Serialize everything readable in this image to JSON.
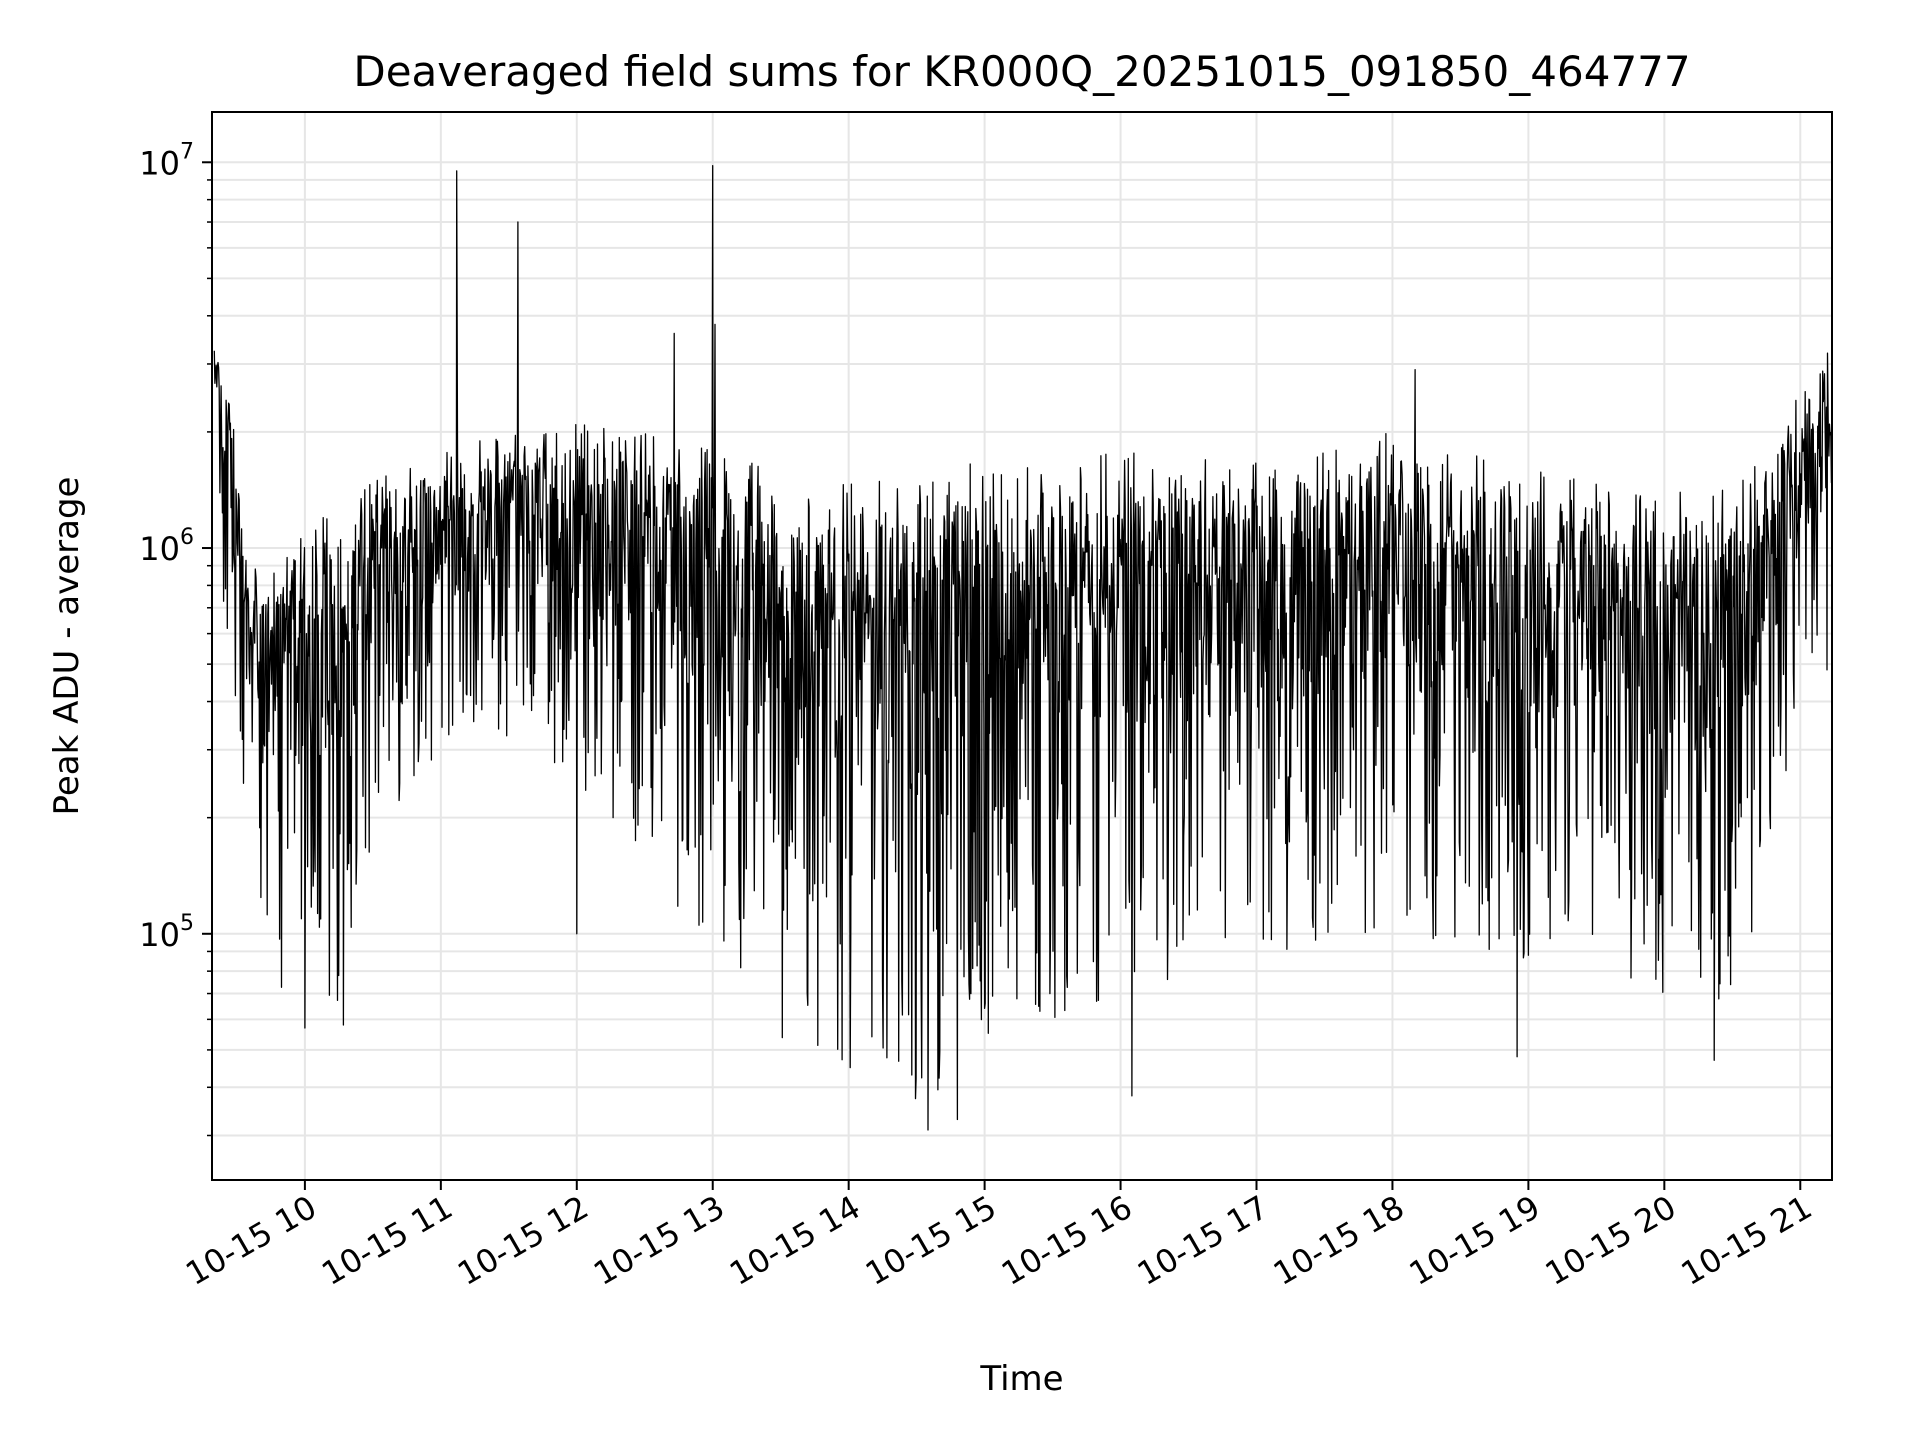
{
  "chart_data": {
    "type": "line",
    "title": "Deaveraged field sums for KR000Q_20251015_091850_464777",
    "xlabel": "Time",
    "ylabel": "Peak ADU - average",
    "yscale": "log",
    "ylim": [
      23000,
      13500000
    ],
    "xlim": [
      "2025-10-15 09:19",
      "2025-10-15 21:14"
    ],
    "x_ticks": [
      {
        "t": "2025-10-15 10:00",
        "label": "10-15 10"
      },
      {
        "t": "2025-10-15 11:00",
        "label": "10-15 11"
      },
      {
        "t": "2025-10-15 12:00",
        "label": "10-15 12"
      },
      {
        "t": "2025-10-15 13:00",
        "label": "10-15 13"
      },
      {
        "t": "2025-10-15 14:00",
        "label": "10-15 14"
      },
      {
        "t": "2025-10-15 15:00",
        "label": "10-15 15"
      },
      {
        "t": "2025-10-15 16:00",
        "label": "10-15 16"
      },
      {
        "t": "2025-10-15 17:00",
        "label": "10-15 17"
      },
      {
        "t": "2025-10-15 18:00",
        "label": "10-15 18"
      },
      {
        "t": "2025-10-15 19:00",
        "label": "10-15 19"
      },
      {
        "t": "2025-10-15 20:00",
        "label": "10-15 20"
      },
      {
        "t": "2025-10-15 21:00",
        "label": "10-15 21"
      }
    ],
    "y_ticks": [
      {
        "value": 100000,
        "base": "10",
        "exp": "5"
      },
      {
        "value": 1000000,
        "base": "10",
        "exp": "6"
      },
      {
        "value": 10000000,
        "base": "10",
        "exp": "7"
      }
    ],
    "grid": true,
    "line_color": "#000000",
    "grid_color": "#e6e6e6",
    "series": [
      {
        "envelope": [
          {
            "x": "2025-10-15 09:20",
            "low": 1300000,
            "high": 3500000
          },
          {
            "x": "2025-10-15 09:27",
            "low": 400000,
            "high": 2400000
          },
          {
            "x": "2025-10-15 09:35",
            "low": 110000,
            "high": 1000000
          },
          {
            "x": "2025-10-15 09:45",
            "low": 75000,
            "high": 850000
          },
          {
            "x": "2025-10-15 10:00",
            "low": 60000,
            "high": 1200000
          },
          {
            "x": "2025-10-15 10:15",
            "low": 60000,
            "high": 1300000
          },
          {
            "x": "2025-10-15 10:30",
            "low": 180000,
            "high": 1500000
          },
          {
            "x": "2025-10-15 11:00",
            "low": 300000,
            "high": 1800000
          },
          {
            "x": "2025-10-15 11:30",
            "low": 300000,
            "high": 2000000
          },
          {
            "x": "2025-10-15 12:00",
            "low": 250000,
            "high": 2100000
          },
          {
            "x": "2025-10-15 12:30",
            "low": 150000,
            "high": 2000000
          },
          {
            "x": "2025-10-15 13:00",
            "low": 90000,
            "high": 1800000
          },
          {
            "x": "2025-10-15 13:30",
            "low": 50000,
            "high": 1600000
          },
          {
            "x": "2025-10-15 14:00",
            "low": 40000,
            "high": 1500000
          },
          {
            "x": "2025-10-15 14:30",
            "low": 35000,
            "high": 1500000
          },
          {
            "x": "2025-10-15 15:00",
            "low": 50000,
            "high": 1700000
          },
          {
            "x": "2025-10-15 15:30",
            "low": 60000,
            "high": 1600000
          },
          {
            "x": "2025-10-15 16:00",
            "low": 70000,
            "high": 1800000
          },
          {
            "x": "2025-10-15 16:30",
            "low": 70000,
            "high": 1700000
          },
          {
            "x": "2025-10-15 17:00",
            "low": 80000,
            "high": 1700000
          },
          {
            "x": "2025-10-15 17:30",
            "low": 90000,
            "high": 1800000
          },
          {
            "x": "2025-10-15 18:00",
            "low": 100000,
            "high": 2000000
          },
          {
            "x": "2025-10-15 18:30",
            "low": 90000,
            "high": 1800000
          },
          {
            "x": "2025-10-15 19:00",
            "low": 80000,
            "high": 1600000
          },
          {
            "x": "2025-10-15 19:30",
            "low": 90000,
            "high": 1500000
          },
          {
            "x": "2025-10-15 20:00",
            "low": 65000,
            "high": 1400000
          },
          {
            "x": "2025-10-15 20:30",
            "low": 55000,
            "high": 1500000
          },
          {
            "x": "2025-10-15 20:45",
            "low": 150000,
            "high": 1700000
          },
          {
            "x": "2025-10-15 21:00",
            "low": 350000,
            "high": 2700000
          },
          {
            "x": "2025-10-15 21:14",
            "low": 500000,
            "high": 3000000
          }
        ],
        "spikes": [
          {
            "x": "2025-10-15 11:07",
            "y": 9500000
          },
          {
            "x": "2025-10-15 11:34",
            "y": 7000000
          },
          {
            "x": "2025-10-15 12:43",
            "y": 3600000
          },
          {
            "x": "2025-10-15 13:00",
            "y": 9800000
          },
          {
            "x": "2025-10-15 13:01",
            "y": 3800000
          },
          {
            "x": "2025-10-15 18:10",
            "y": 2900000
          },
          {
            "x": "2025-10-15 21:12",
            "y": 3200000
          }
        ],
        "dips": [
          {
            "x": "2025-10-15 10:00",
            "y": 57000
          },
          {
            "x": "2025-10-15 10:17",
            "y": 58000
          },
          {
            "x": "2025-10-15 12:00",
            "y": 100000
          },
          {
            "x": "2025-10-15 14:35",
            "y": 31000
          },
          {
            "x": "2025-10-15 14:48",
            "y": 33000
          },
          {
            "x": "2025-10-15 16:05",
            "y": 38000
          },
          {
            "x": "2025-10-15 18:55",
            "y": 48000
          },
          {
            "x": "2025-10-15 20:22",
            "y": 47000
          }
        ]
      }
    ]
  }
}
